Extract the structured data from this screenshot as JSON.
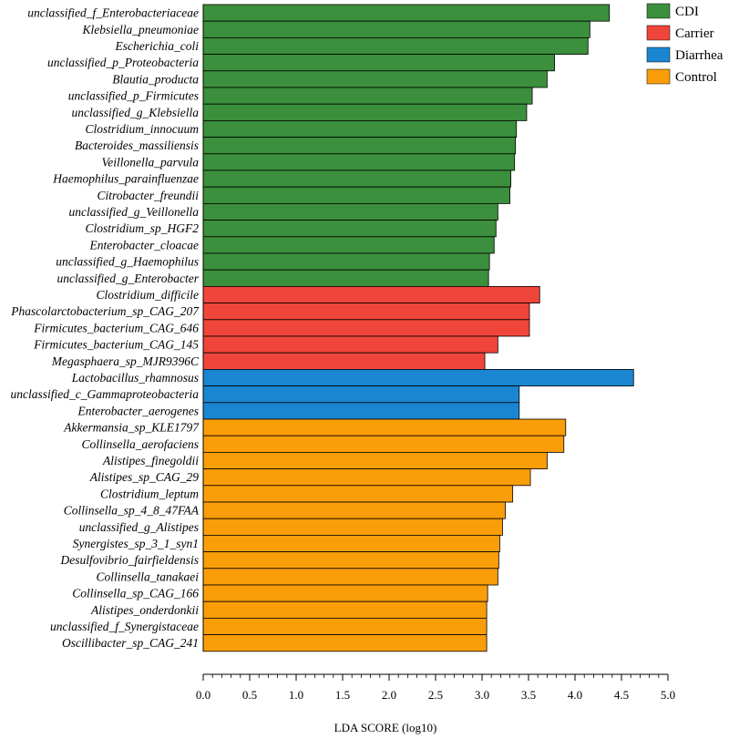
{
  "chart_data": {
    "type": "bar",
    "orientation": "horizontal",
    "xlabel": "LDA SCORE  (log10)",
    "xlim": [
      0,
      5
    ],
    "xticks": [
      "0.0",
      "0.5",
      "1.0",
      "1.5",
      "2.0",
      "2.5",
      "3.0",
      "3.5",
      "4.0",
      "4.5",
      "5.0"
    ],
    "legend": [
      {
        "name": "CDI",
        "color": "#3c8f3c"
      },
      {
        "name": "Carrier",
        "color": "#f0453a"
      },
      {
        "name": "Diarrhea",
        "color": "#1a86d2"
      },
      {
        "name": "Control",
        "color": "#f99d09"
      }
    ],
    "bars": [
      {
        "label": "unclassified_f_Enterobacteriaceae",
        "value": 4.37,
        "group": "CDI"
      },
      {
        "label": "Klebsiella_pneumoniae",
        "value": 4.16,
        "group": "CDI"
      },
      {
        "label": "Escherichia_coli",
        "value": 4.14,
        "group": "CDI"
      },
      {
        "label": "unclassified_p_Proteobacteria",
        "value": 3.78,
        "group": "CDI"
      },
      {
        "label": "Blautia_producta",
        "value": 3.7,
        "group": "CDI"
      },
      {
        "label": "unclassified_p_Firmicutes",
        "value": 3.54,
        "group": "CDI"
      },
      {
        "label": "unclassified_g_Klebsiella",
        "value": 3.48,
        "group": "CDI"
      },
      {
        "label": "Clostridium_innocuum",
        "value": 3.37,
        "group": "CDI"
      },
      {
        "label": "Bacteroides_massiliensis",
        "value": 3.36,
        "group": "CDI"
      },
      {
        "label": "Veillonella_parvula",
        "value": 3.35,
        "group": "CDI"
      },
      {
        "label": "Haemophilus_parainfluenzae",
        "value": 3.31,
        "group": "CDI"
      },
      {
        "label": "Citrobacter_freundii",
        "value": 3.3,
        "group": "CDI"
      },
      {
        "label": "unclassified_g_Veillonella",
        "value": 3.17,
        "group": "CDI"
      },
      {
        "label": "Clostridium_sp_HGF2",
        "value": 3.15,
        "group": "CDI"
      },
      {
        "label": "Enterobacter_cloacae",
        "value": 3.13,
        "group": "CDI"
      },
      {
        "label": "unclassified_g_Haemophilus",
        "value": 3.08,
        "group": "CDI"
      },
      {
        "label": "unclassified_g_Enterobacter",
        "value": 3.07,
        "group": "CDI"
      },
      {
        "label": "Clostridium_difficile",
        "value": 3.62,
        "group": "Carrier"
      },
      {
        "label": "Phascolarctobacterium_sp_CAG_207",
        "value": 3.51,
        "group": "Carrier"
      },
      {
        "label": "Firmicutes_bacterium_CAG_646",
        "value": 3.51,
        "group": "Carrier"
      },
      {
        "label": "Firmicutes_bacterium_CAG_145",
        "value": 3.17,
        "group": "Carrier"
      },
      {
        "label": "Megasphaera_sp_MJR9396C",
        "value": 3.03,
        "group": "Carrier"
      },
      {
        "label": "Lactobacillus_rhamnosus",
        "value": 4.63,
        "group": "Diarrhea"
      },
      {
        "label": "unclassified_c_Gammaproteobacteria",
        "value": 3.4,
        "group": "Diarrhea"
      },
      {
        "label": "Enterobacter_aerogenes",
        "value": 3.4,
        "group": "Diarrhea"
      },
      {
        "label": "Akkermansia_sp_KLE1797",
        "value": 3.9,
        "group": "Control"
      },
      {
        "label": "Collinsella_aerofaciens",
        "value": 3.88,
        "group": "Control"
      },
      {
        "label": "Alistipes_finegoldii",
        "value": 3.7,
        "group": "Control"
      },
      {
        "label": "Alistipes_sp_CAG_29",
        "value": 3.52,
        "group": "Control"
      },
      {
        "label": "Clostridium_leptum",
        "value": 3.33,
        "group": "Control"
      },
      {
        "label": "Collinsella_sp_4_8_47FAA",
        "value": 3.25,
        "group": "Control"
      },
      {
        "label": "unclassified_g_Alistipes",
        "value": 3.22,
        "group": "Control"
      },
      {
        "label": "Synergistes_sp_3_1_syn1",
        "value": 3.19,
        "group": "Control"
      },
      {
        "label": "Desulfovibrio_fairfieldensis",
        "value": 3.18,
        "group": "Control"
      },
      {
        "label": "Collinsella_tanakaei",
        "value": 3.17,
        "group": "Control"
      },
      {
        "label": "Collinsella_sp_CAG_166",
        "value": 3.06,
        "group": "Control"
      },
      {
        "label": "Alistipes_onderdonkii",
        "value": 3.05,
        "group": "Control"
      },
      {
        "label": "unclassified_f_Synergistaceae",
        "value": 3.05,
        "group": "Control"
      },
      {
        "label": "Oscillibacter_sp_CAG_241",
        "value": 3.05,
        "group": "Control"
      }
    ]
  }
}
